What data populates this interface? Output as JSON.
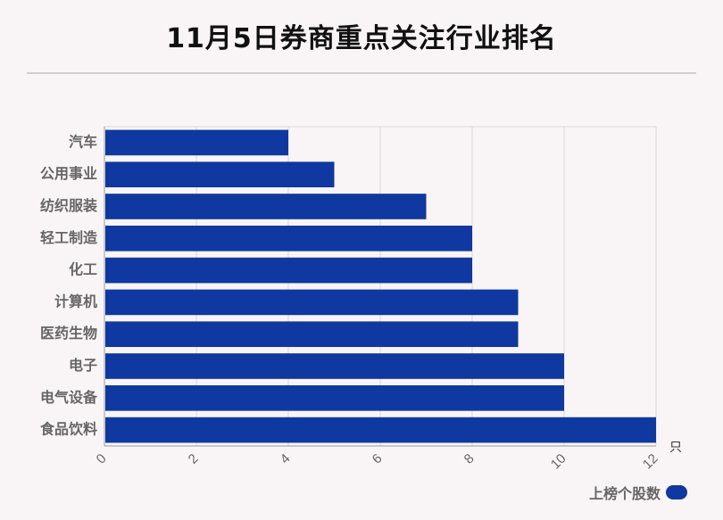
{
  "title": "11月5日券商重点关注行业排名",
  "colors": {
    "bar": "#0f38a0",
    "axis_text": "#666666",
    "grid": "#d6d6d6",
    "axis_line": "#999999"
  },
  "chart_data": {
    "type": "bar",
    "orientation": "horizontal",
    "title": "11月5日券商重点关注行业排名",
    "categories": [
      "汽车",
      "公用事业",
      "纺织服装",
      "轻工制造",
      "化工",
      "计算机",
      "医药生物",
      "电子",
      "电气设备",
      "食品饮料"
    ],
    "series": [
      {
        "name": "上榜个股数",
        "values": [
          4,
          5,
          7,
          8,
          8,
          9,
          9,
          10,
          10,
          12
        ]
      }
    ],
    "x_ticks": [
      "0",
      "2",
      "4",
      "6",
      "8",
      "10",
      "12"
    ],
    "x_unit": "只",
    "xlim": [
      0,
      12
    ],
    "grid": true,
    "legend_position": "bottom-right"
  }
}
